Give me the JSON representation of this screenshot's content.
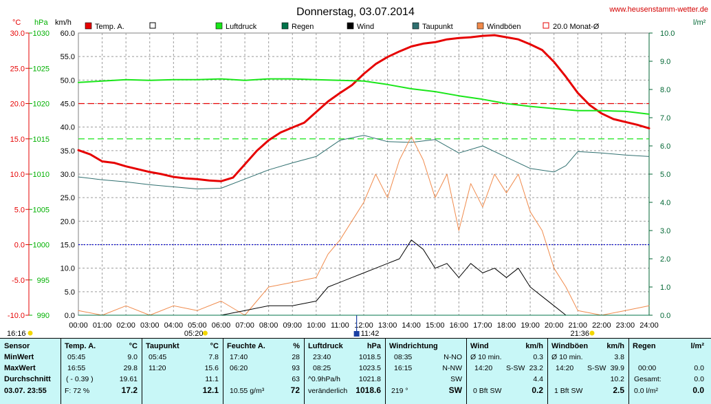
{
  "header": {
    "title": "Donnerstag, 03.07.2014",
    "site": "www.heusenstamm-wetter.de",
    "unit_temp": "°C",
    "unit_press": "hPa",
    "unit_wind": "km/h",
    "unit_rain": "l/m²"
  },
  "legend": [
    {
      "label": "Temp. A.",
      "color": "#e60000",
      "type": "fill"
    },
    {
      "label": "",
      "color": "#ffffff",
      "type": "box"
    },
    {
      "label": "Luftdruck",
      "color": "#19e619",
      "type": "fill"
    },
    {
      "label": "Regen",
      "color": "#00734a",
      "type": "fill"
    },
    {
      "label": "Wind",
      "color": "#000000",
      "type": "fill"
    },
    {
      "label": "Taupunkt",
      "color": "#2f6f6f",
      "type": "fill"
    },
    {
      "label": "Windböen",
      "color": "#f08a4b",
      "type": "fill"
    },
    {
      "label": "20.0 Monat-Ø",
      "color": "#e60000",
      "type": "box"
    }
  ],
  "annotations": {
    "sunrise": "05:20",
    "sunset": "21:36",
    "noon": "11:42",
    "left_time": "16:16"
  },
  "chart_data": {
    "type": "line",
    "x_ticks": [
      "00:00",
      "01:00",
      "02:00",
      "03:00",
      "04:00",
      "05:00",
      "06:00",
      "07:00",
      "08:00",
      "09:00",
      "10:00",
      "11:00",
      "12:00",
      "13:00",
      "14:00",
      "15:00",
      "16:00",
      "17:00",
      "18:00",
      "19:00",
      "20:00",
      "21:00",
      "22:00",
      "23:00",
      "24:00"
    ],
    "axes": {
      "temp": {
        "ylim": [
          -10,
          30
        ],
        "ticks": [
          "30.0",
          "25.0",
          "20.0",
          "15.0",
          "10.0",
          "5.0",
          "0.0",
          "-5.0",
          "-10.0"
        ],
        "color": "#e60000"
      },
      "pressure": {
        "ylim": [
          990,
          1030
        ],
        "ticks": [
          "1030",
          "1025",
          "1020",
          "1015",
          "1010",
          "1005",
          "1000",
          "995",
          "990"
        ],
        "color": "#00b000"
      },
      "wind": {
        "ylim": [
          0,
          60
        ],
        "ticks": [
          "60.0",
          "55.0",
          "50.0",
          "45.0",
          "40.0",
          "35.0",
          "30.0",
          "25.0",
          "20.0",
          "15.0",
          "10.0",
          "5.0",
          "0.0"
        ],
        "color": "#000000"
      },
      "rain": {
        "ylim": [
          0,
          10
        ],
        "ticks": [
          "10.0",
          "9.0",
          "8.0",
          "7.0",
          "6.0",
          "5.0",
          "4.0",
          "3.0",
          "2.0",
          "1.0",
          "0.0"
        ],
        "color": "#006633"
      }
    },
    "reference_lines": [
      {
        "label": "20.0 Monat-Ø",
        "axis": "temp",
        "value": 20.0,
        "color": "#e60000",
        "style": "dashed"
      },
      {
        "label": "1015 hPa",
        "axis": "pressure",
        "value": 1015,
        "color": "#19e619",
        "style": "dashed"
      },
      {
        "label": "0 °C",
        "axis": "temp",
        "value": 0.0,
        "color": "#0000cc",
        "style": "dotted"
      }
    ],
    "series": [
      {
        "name": "Temp. A.",
        "axis": "temp",
        "color": "#e60000",
        "width": 3,
        "x": [
          0,
          0.5,
          1,
          1.5,
          2,
          2.5,
          3,
          3.5,
          4,
          4.5,
          5,
          5.5,
          6,
          6.5,
          7,
          7.5,
          8,
          8.5,
          9,
          9.5,
          10,
          10.5,
          11,
          11.5,
          12,
          12.5,
          13,
          13.5,
          14,
          14.5,
          15,
          15.5,
          16,
          16.5,
          17,
          17.5,
          18,
          18.5,
          19,
          19.5,
          20,
          20.5,
          21,
          21.5,
          22,
          22.5,
          23,
          23.5,
          24
        ],
        "y": [
          13.4,
          12.8,
          11.8,
          11.6,
          11.1,
          10.7,
          10.3,
          10.0,
          9.6,
          9.4,
          9.3,
          9.1,
          9.0,
          9.5,
          11.4,
          13.3,
          14.8,
          15.9,
          16.6,
          17.3,
          18.8,
          20.3,
          21.5,
          22.6,
          24.2,
          25.6,
          26.6,
          27.4,
          28.1,
          28.5,
          28.7,
          29.1,
          29.3,
          29.4,
          29.6,
          29.7,
          29.4,
          29.1,
          28.4,
          27.6,
          25.9,
          23.8,
          21.5,
          19.8,
          18.6,
          17.8,
          17.4,
          17.0,
          16.5
        ]
      },
      {
        "name": "Luftdruck",
        "axis": "pressure",
        "color": "#19e619",
        "width": 2,
        "x": [
          0,
          1,
          2,
          3,
          4,
          5,
          6,
          7,
          8,
          9,
          10,
          11,
          12,
          13,
          14,
          15,
          16,
          17,
          18,
          19,
          20,
          21,
          22,
          23,
          24
        ],
        "y": [
          1023.0,
          1023.2,
          1023.4,
          1023.3,
          1023.4,
          1023.4,
          1023.5,
          1023.3,
          1023.5,
          1023.5,
          1023.4,
          1023.3,
          1023.2,
          1022.7,
          1022.1,
          1021.7,
          1021.1,
          1020.6,
          1020.0,
          1019.6,
          1019.3,
          1019.0,
          1019.0,
          1018.9,
          1018.5
        ]
      },
      {
        "name": "Taupunkt",
        "axis": "temp",
        "color": "#2f6f6f",
        "width": 1,
        "x": [
          0,
          1,
          2,
          3,
          4,
          5,
          6,
          7,
          8,
          9,
          10,
          11,
          12,
          13,
          14,
          15,
          16,
          17,
          18,
          19,
          20,
          20.5,
          21,
          22,
          23,
          24
        ],
        "y": [
          9.6,
          9.2,
          8.9,
          8.5,
          8.2,
          7.9,
          8.0,
          9.3,
          10.6,
          11.6,
          12.5,
          14.8,
          15.5,
          14.6,
          14.5,
          14.9,
          13.0,
          14.0,
          12.4,
          10.8,
          10.3,
          11.2,
          13.2,
          13.0,
          12.7,
          12.5
        ]
      },
      {
        "name": "Windböen",
        "axis": "wind",
        "color": "#f08a4b",
        "width": 1,
        "x": [
          0,
          1,
          2,
          3,
          4,
          5,
          6,
          7,
          8,
          9,
          10,
          10.5,
          11,
          11.5,
          12,
          12.5,
          13,
          13.5,
          14,
          14.5,
          15,
          15.5,
          16,
          16.5,
          17,
          17.5,
          18,
          18.5,
          19,
          19.5,
          20,
          20.5,
          21,
          22,
          23,
          24
        ],
        "y": [
          1,
          0,
          2,
          0,
          2,
          1,
          3,
          0,
          6,
          7,
          8,
          13,
          16,
          20,
          24,
          30,
          25,
          33,
          38,
          33,
          25,
          30,
          18,
          28,
          23,
          30,
          26,
          30,
          22,
          18,
          10,
          6,
          1,
          0,
          1,
          2
        ]
      },
      {
        "name": "Wind",
        "axis": "wind",
        "color": "#000000",
        "width": 1,
        "x": [
          0,
          1,
          2,
          3,
          4,
          5,
          6,
          7,
          8,
          9,
          10,
          10.5,
          11,
          11.5,
          12,
          12.5,
          13,
          13.5,
          14,
          14.5,
          15,
          15.5,
          16,
          16.5,
          17,
          17.5,
          18,
          18.5,
          19,
          19.5,
          20,
          20.5,
          21,
          22,
          23,
          24
        ],
        "y": [
          0,
          0,
          0,
          0,
          0,
          0,
          0,
          1,
          2,
          2,
          3,
          6,
          7,
          8,
          9,
          10,
          11,
          12,
          16,
          14,
          10,
          11,
          8,
          11,
          9,
          10,
          8,
          10,
          6,
          4,
          2,
          0,
          0,
          0,
          0,
          0
        ]
      },
      {
        "name": "Regen",
        "axis": "rain",
        "color": "#00734a",
        "width": 1,
        "x": [
          0,
          24
        ],
        "y": [
          0.0,
          0.0
        ]
      }
    ]
  },
  "table": {
    "row_labels": {
      "sensor": "Sensor",
      "min": "MinWert",
      "max": "MaxWert",
      "avg": "Durchschnitt",
      "last": "03.07. 23:55"
    },
    "temp": {
      "h": "Temp. A.",
      "u": "°C",
      "min_t": "05:45",
      "min_v": "9.0",
      "max_t": "16:55",
      "max_v": "29.8",
      "avg_note": "( - 0.39 )",
      "avg_v": "19.61",
      "last_note": "F: 72 %",
      "last_v": "17.2"
    },
    "dew": {
      "h": "Taupunkt",
      "u": "°C",
      "min_t": "05:45",
      "min_v": "7.8",
      "max_t": "11:20",
      "max_v": "15.6",
      "avg_v": "11.1",
      "last_v": "12.1"
    },
    "hum": {
      "h": "Feuchte A.",
      "u": "%",
      "min_t": "17:40",
      "min_v": "28",
      "max_t": "06:20",
      "max_v": "93",
      "avg_v": "63",
      "last_note": "10.55 g/m³",
      "last_v": "72"
    },
    "press": {
      "h": "Luftdruck",
      "u": "hPa",
      "min_t": "23:40",
      "min_v": "1018.5",
      "max_t": "08:25",
      "max_v": "1023.5",
      "avg_note": "^0.9hPa/h",
      "avg_v": "1021.8",
      "last_note": "veränderlich",
      "last_v": "1018.6"
    },
    "dir": {
      "h": "Windrichtung",
      "min_t": "08:35",
      "min_v": "N-NO",
      "max_t": "16:15",
      "max_v": "N-NW",
      "avg_v": "SW",
      "last_note": "219 °",
      "last_v": "SW"
    },
    "wind": {
      "h": "Wind",
      "u": "km/h",
      "min_t": "Ø 10 min.",
      "min_v": "0.3",
      "max_t": "14:20",
      "max_d": "S-SW",
      "max_v": "23.2",
      "avg_v": "4.4",
      "last_note": "0 Bft SW",
      "last_v": "0.2"
    },
    "gust": {
      "h": "Windböen",
      "u": "km/h",
      "min_t": "Ø 10 min.",
      "min_v": "3.8",
      "max_t": "14:20",
      "max_d": "S-SW",
      "max_v": "39.9",
      "avg_v": "10.2",
      "last_note": "1 Bft SW",
      "last_v": "2.5"
    },
    "rain": {
      "h": "Regen",
      "u": "l/m²",
      "max_t": "00:00",
      "max_v": "0.0",
      "avg_note": "Gesamt:",
      "avg_v": "0.0",
      "last_note": "0.0 l/m²",
      "last_v": "0.0"
    }
  }
}
